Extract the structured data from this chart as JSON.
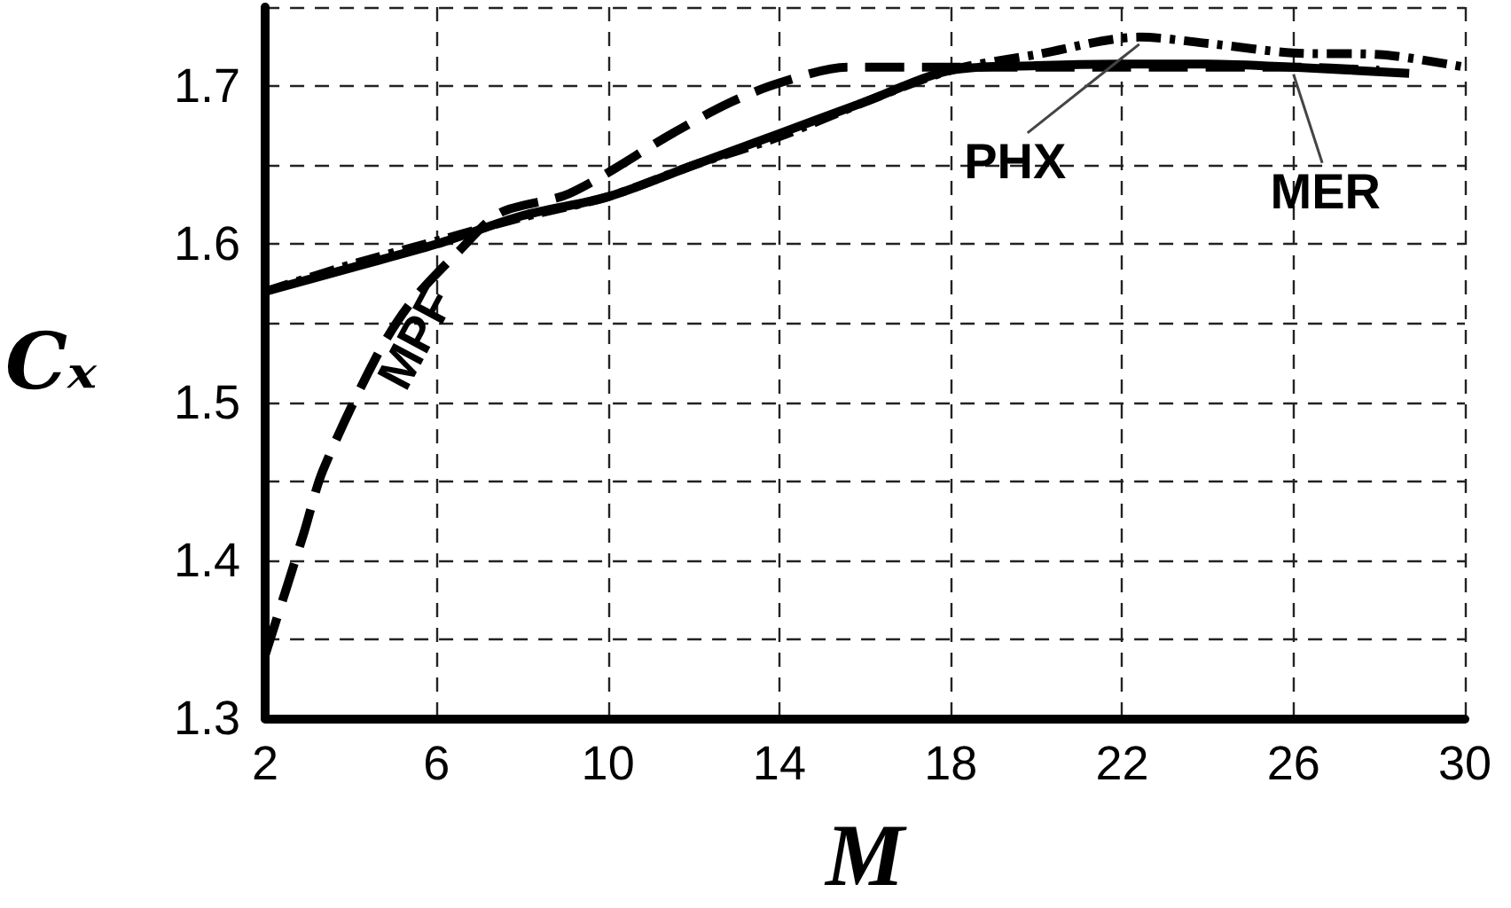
{
  "chart_data": {
    "type": "line",
    "xlabel": "M",
    "ylabel": "Cₓ",
    "xlim": [
      2,
      30
    ],
    "xticks": [
      2,
      6,
      10,
      14,
      18,
      22,
      26,
      30
    ],
    "ylim": [
      1.3,
      1.75
    ],
    "yticks": [
      1.3,
      {
        "value": 1.35,
        "label": null
      },
      1.4,
      {
        "value": 1.45,
        "label": null
      },
      1.5,
      {
        "value": 1.55,
        "label": null
      },
      1.6,
      {
        "value": 1.65,
        "label": null
      },
      1.7,
      {
        "value": 1.75,
        "label": null
      }
    ],
    "grid": true,
    "legend": false,
    "marker": "none",
    "series": [
      {
        "name": "MER",
        "color": "#000000",
        "line_style": "solid",
        "x": [
          2,
          4,
          6,
          8,
          10,
          12,
          14,
          16,
          18,
          20,
          22,
          24,
          26,
          28.7
        ],
        "values": [
          1.57,
          1.585,
          1.6,
          1.618,
          1.63,
          1.65,
          1.67,
          1.69,
          1.71,
          1.713,
          1.714,
          1.714,
          1.712,
          1.708
        ]
      },
      {
        "name": "PHX",
        "color": "#000000",
        "line_style": "dashdot",
        "x": [
          2,
          4,
          6,
          8,
          10,
          12,
          14,
          16,
          18,
          20,
          22.4,
          24,
          26,
          28,
          30
        ],
        "values": [
          1.57,
          1.587,
          1.602,
          1.617,
          1.63,
          1.65,
          1.668,
          1.69,
          1.71,
          1.72,
          1.731,
          1.727,
          1.721,
          1.72,
          1.712
        ]
      },
      {
        "name": "MPF",
        "color": "#000000",
        "line_style": "dashed",
        "x": [
          2,
          2.9,
          3.35,
          4.6,
          5.4,
          6.5,
          7.5,
          9.1,
          11.5,
          12.8,
          14,
          15.6,
          18,
          22,
          26,
          28
        ],
        "values": [
          1.34,
          1.417,
          1.457,
          1.529,
          1.563,
          1.595,
          1.62,
          1.632,
          1.67,
          1.689,
          1.702,
          1.712,
          1.712,
          1.712,
          1.712,
          1.71
        ]
      }
    ]
  }
}
